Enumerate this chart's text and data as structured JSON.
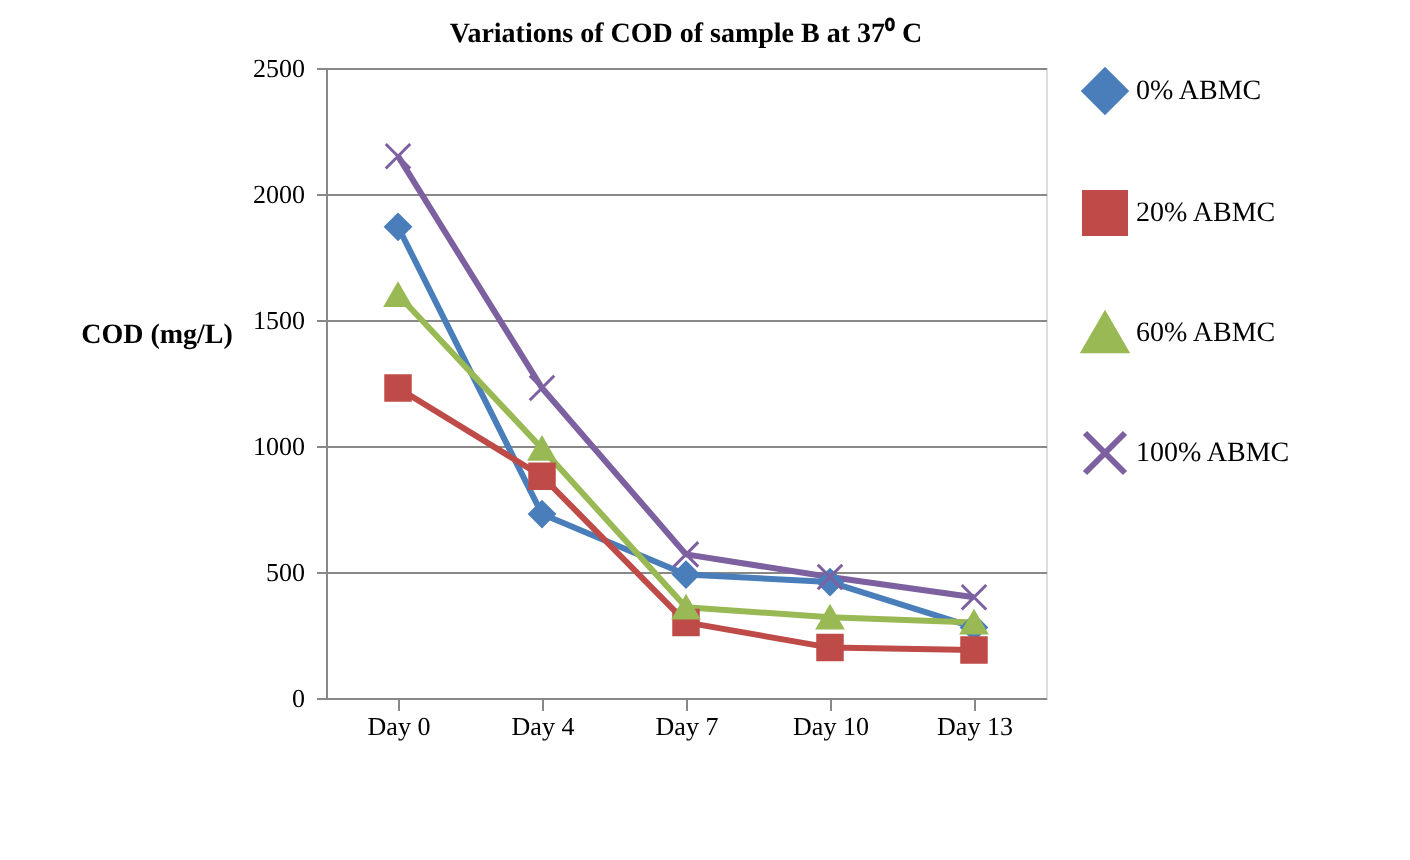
{
  "chart_data": {
    "type": "line",
    "title": "Variations of COD of sample B at 37⁰ C",
    "ylabel": "COD (mg/L)",
    "categories": [
      "Day 0",
      "Day 4",
      "Day 7",
      "Day 10",
      "Day 13"
    ],
    "series": [
      {
        "name": "0% ABMC",
        "color": "#4a7ebb",
        "marker": "diamond",
        "values": [
          1870,
          730,
          490,
          460,
          280
        ]
      },
      {
        "name": "20% ABMC",
        "color": "#be4b48",
        "marker": "square",
        "values": [
          1230,
          880,
          300,
          200,
          190
        ]
      },
      {
        "name": "60% ABMC",
        "color": "#98b954",
        "marker": "triangle",
        "values": [
          1600,
          990,
          360,
          320,
          300
        ]
      },
      {
        "name": "100% ABMC",
        "color": "#7d60a0",
        "marker": "cross",
        "values": [
          2150,
          1230,
          570,
          480,
          400
        ]
      }
    ],
    "ylim": [
      0,
      2500
    ],
    "yticks": [
      0,
      500,
      1000,
      1500,
      2000,
      2500
    ],
    "grid": "y",
    "legend": "right",
    "line_style": "solid"
  }
}
